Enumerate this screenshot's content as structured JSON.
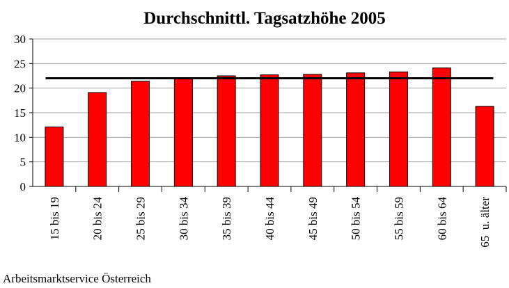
{
  "chart_data": {
    "type": "bar",
    "title": "Durchschnittl. Tagsatzhöhe 2005",
    "categories": [
      "15 bis 19",
      "20 bis 24",
      "25 bis 29",
      "30 bis 34",
      "35 bis 39",
      "40 bis 44",
      "45 bis 49",
      "50 bis 54",
      "55 bis 59",
      "60 bis 64",
      "65  u. älter"
    ],
    "values": [
      12.1,
      19.1,
      21.4,
      22.1,
      22.5,
      22.7,
      22.8,
      23.1,
      23.3,
      24.1,
      16.3
    ],
    "color": "#ff0000",
    "average": 22.0,
    "average_color": "#000000",
    "ylim": [
      0,
      30
    ],
    "yticks": [
      0,
      5,
      10,
      15,
      20,
      25,
      30
    ],
    "grid": true,
    "source": "Arbeitsmarktservice Österreich"
  }
}
